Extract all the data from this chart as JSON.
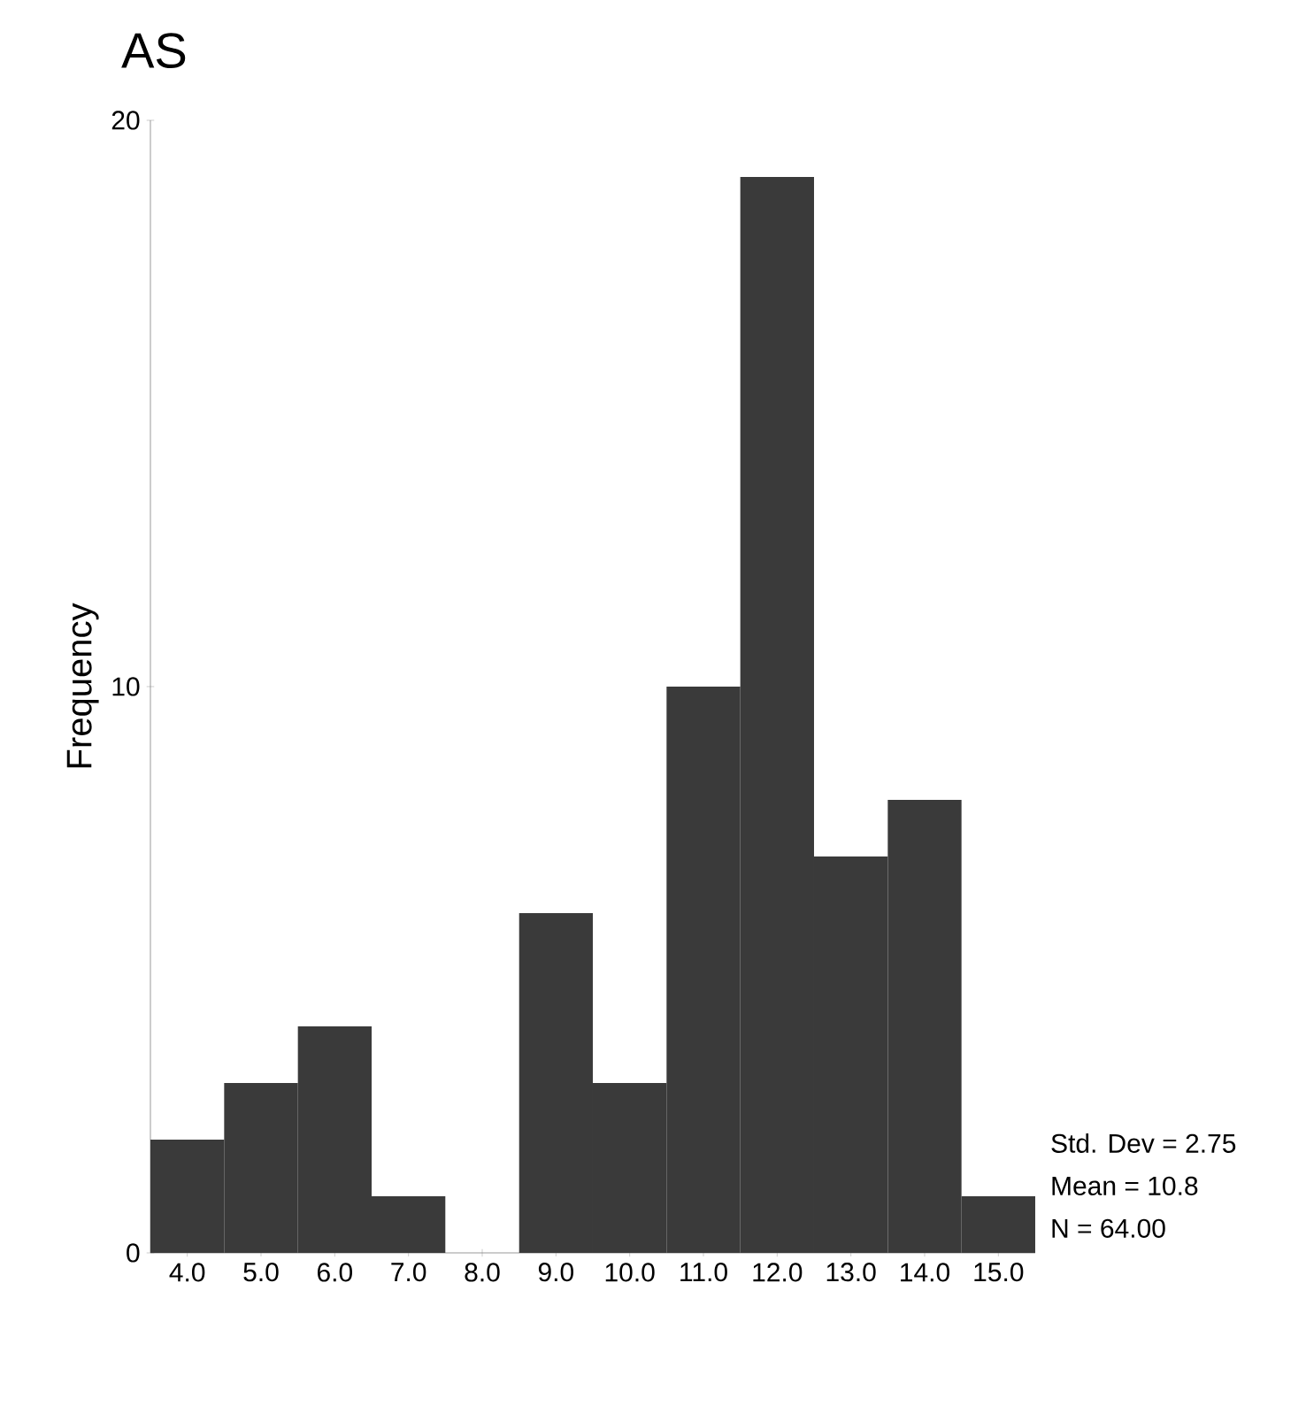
{
  "chart_data": {
    "type": "histogram",
    "title": "AS",
    "ylabel": "Frequency",
    "bins": [
      3.5,
      4.5,
      5.5,
      6.5,
      7.5,
      8.5,
      9.5,
      10.5,
      11.5,
      12.5,
      13.5,
      14.5,
      15.5
    ],
    "values": [
      2,
      3,
      4,
      1,
      0,
      6,
      3,
      10,
      19,
      7,
      8,
      1
    ],
    "color": "#3a3a3a",
    "xlim": [
      3.5,
      15.5
    ],
    "ylim": [
      0,
      20
    ],
    "xticks": [
      {
        "value": 4,
        "label": "4.0"
      },
      {
        "value": 5,
        "label": "5.0"
      },
      {
        "value": 6,
        "label": "6.0"
      },
      {
        "value": 7,
        "label": "7.0"
      },
      {
        "value": 8,
        "label": "8.0"
      },
      {
        "value": 9,
        "label": "9.0"
      },
      {
        "value": 10,
        "label": "10.0"
      },
      {
        "value": 11,
        "label": "11.0"
      },
      {
        "value": 12,
        "label": "12.0"
      },
      {
        "value": 13,
        "label": "13.0"
      },
      {
        "value": 14,
        "label": "14.0"
      },
      {
        "value": 15,
        "label": "15.0"
      }
    ],
    "yticks": [
      0,
      10,
      20
    ],
    "annotations": [
      "Std. Dev = 2.75",
      "Mean = 10.8",
      "N = 64.00"
    ]
  }
}
